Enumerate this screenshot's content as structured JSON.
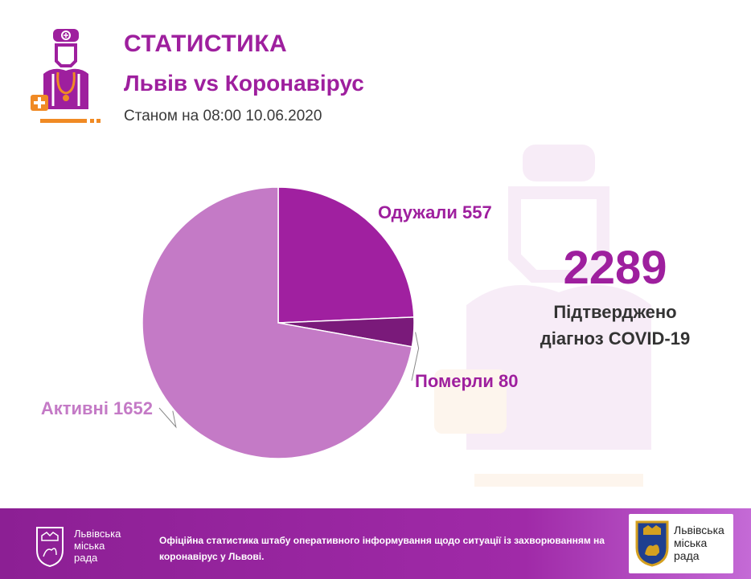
{
  "header": {
    "title": "СТАТИСТИКА",
    "subtitle": "Львів vs Коронавірус",
    "as_of": "Станом на 08:00 10.06.2020"
  },
  "summary": {
    "total": "2289",
    "label_line1": "Підтверджено",
    "label_line2": "діагноз COVID-19"
  },
  "chart_data": {
    "type": "pie",
    "slices": [
      {
        "label": "Одужали 557",
        "value": 557,
        "color": "#a020a0"
      },
      {
        "label": "Померли 80",
        "value": 80,
        "color": "#7a1a7a"
      },
      {
        "label": "Активні 1652",
        "value": 1652,
        "color": "#c47ac6"
      }
    ],
    "start_angle_deg": 0,
    "direction": "clockwise",
    "legend": "none"
  },
  "footer": {
    "text": "Офіційна статистика штабу оперативного інформування щодо ситуації із захворюванням на коронавірус у Львові.",
    "city_council_line1": "Львівська",
    "city_council_line2": "міська",
    "city_council_line3": "рада"
  },
  "colors": {
    "brand_purple": "#9e1f9e",
    "dark_purple": "#7a1a7a",
    "light_purple": "#c47ac6",
    "accent_orange": "#f08a24",
    "footer_gradient_from": "#8c1f94",
    "footer_gradient_to": "#c46ad6"
  },
  "icons": [
    "doctor-icon",
    "city-coat-of-arms-icon"
  ]
}
